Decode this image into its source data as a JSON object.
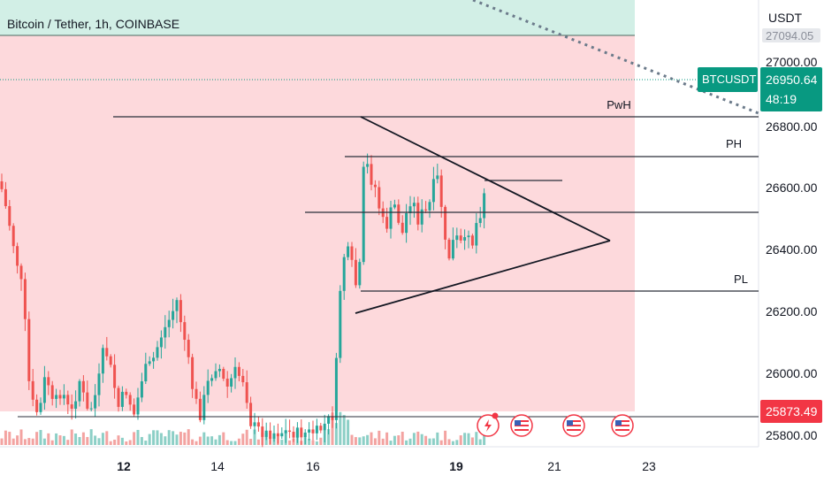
{
  "chart_title": "Bitcoin / Tether, 1h, COINBASE",
  "price_axis": {
    "currency": "USDT",
    "partial_label": "27094.05",
    "ticks": [
      "27000.00",
      "26800.00",
      "26600.00",
      "26400.00",
      "26200.00",
      "26000.00",
      "25800.00"
    ]
  },
  "last_price": {
    "symbol": "BTCUSDT",
    "price": "26950.64",
    "countdown": "48:19"
  },
  "alert_price": "25873.49",
  "x_axis": {
    "labels": [
      {
        "text": "12",
        "bold": true
      },
      {
        "text": "14",
        "bold": false
      },
      {
        "text": "16",
        "bold": false
      },
      {
        "text": "19",
        "bold": true
      },
      {
        "text": "21",
        "bold": false
      },
      {
        "text": "23",
        "bold": false
      }
    ]
  },
  "levels": [
    {
      "name": "PwH",
      "price": 26830
    },
    {
      "name": "PH",
      "price": 26700
    },
    {
      "name": "PL",
      "price": 26260
    }
  ],
  "colors": {
    "bull": "#26a69a",
    "bear": "#ef5350",
    "short_zone": "#fdd9dc",
    "target_zone": "#d2efe6",
    "accent": "#089981",
    "alert": "#f23645"
  },
  "event_icons": [
    "dividend-lightning-icon",
    "us-flag-icon",
    "us-flag-icon",
    "us-flag-icon"
  ],
  "chart_data": {
    "type": "candlestick",
    "ylim": [
      25740,
      27150
    ],
    "series_note": "hourly candles"
  }
}
